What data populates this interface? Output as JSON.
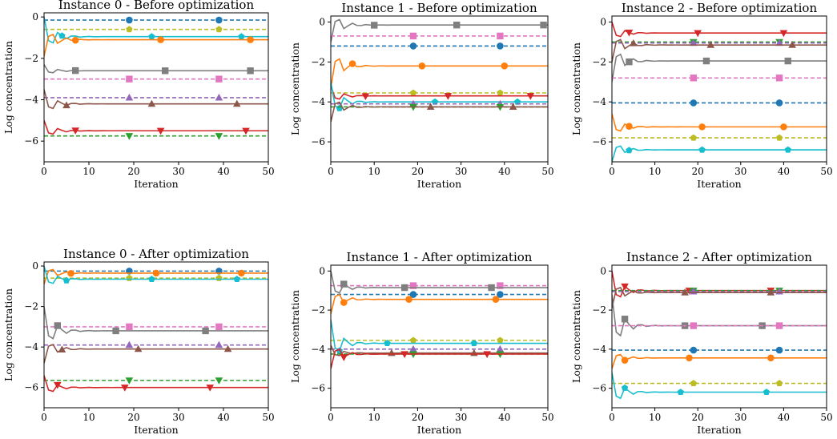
{
  "colors": {
    "blue": "#1f77b4",
    "orange": "#ff7f0e",
    "green": "#2ca02c",
    "red": "#d62728",
    "purple": "#9467bd",
    "brown": "#8c564b",
    "pink": "#e377c2",
    "gray": "#7f7f7f",
    "olive": "#bcbd22",
    "cyan": "#17becf"
  },
  "chart_data": [
    {
      "type": "line",
      "title": "Instance 0 - Before optimization",
      "xlabel": "Iteration",
      "ylabel": "Log concentration",
      "xlim": [
        0,
        50
      ],
      "ylim": [
        -7,
        0.2
      ],
      "xticks": [
        "0",
        "10",
        "20",
        "30",
        "40",
        "50"
      ],
      "xtick_values": [
        0,
        10,
        20,
        30,
        40,
        50
      ],
      "yticks": [
        "0",
        "−2",
        "−4",
        "−6"
      ],
      "ytick_values": [
        0,
        -2,
        -4,
        -6
      ],
      "series": [
        {
          "color": "blue",
          "marker": "circle",
          "dashed": true,
          "start": -0.15,
          "final": -0.15,
          "markers_at": [
            19,
            39
          ]
        },
        {
          "color": "olive",
          "marker": "pentagon",
          "dashed": true,
          "start": -0.6,
          "final": -0.6,
          "markers_at": [
            19,
            39
          ]
        },
        {
          "color": "cyan",
          "marker": "pentagon",
          "dashed": false,
          "start": 0.0,
          "final": -0.95,
          "markers_at": [
            4,
            24,
            44
          ]
        },
        {
          "color": "orange",
          "marker": "circle",
          "dashed": false,
          "start": -1.9,
          "final": -1.1,
          "markers_at": [
            7,
            26,
            46
          ]
        },
        {
          "color": "gray",
          "marker": "square",
          "dashed": false,
          "start": -2.3,
          "final": -2.6,
          "markers_at": [
            7,
            27,
            46
          ]
        },
        {
          "color": "pink",
          "marker": "square",
          "dashed": true,
          "start": -3.0,
          "final": -3.0,
          "markers_at": [
            19,
            39
          ]
        },
        {
          "color": "purple",
          "marker": "triangle-up",
          "dashed": true,
          "start": -3.9,
          "final": -3.9,
          "markers_at": [
            19,
            39
          ]
        },
        {
          "color": "brown",
          "marker": "triangle-up",
          "dashed": false,
          "start": -3.5,
          "final": -4.2,
          "markers_at": [
            5,
            24,
            43
          ]
        },
        {
          "color": "red",
          "marker": "triangle-down",
          "dashed": false,
          "start": -5.0,
          "final": -5.5,
          "markers_at": [
            7,
            26,
            45
          ]
        },
        {
          "color": "green",
          "marker": "triangle-down",
          "dashed": true,
          "start": -5.75,
          "final": -5.75,
          "markers_at": [
            19,
            39
          ]
        }
      ]
    },
    {
      "type": "line",
      "title": "Instance 1 - Before optimization",
      "xlabel": "Iteration",
      "ylabel": "Log concentration",
      "xlim": [
        0,
        50
      ],
      "ylim": [
        -7,
        0.3
      ],
      "xticks": [
        "0",
        "10",
        "20",
        "30",
        "40",
        "50"
      ],
      "xtick_values": [
        0,
        10,
        20,
        30,
        40,
        50
      ],
      "yticks": [
        "0",
        "−2",
        "−4",
        "−6"
      ],
      "ytick_values": [
        0,
        -2,
        -4,
        -6
      ],
      "series": [
        {
          "color": "gray",
          "marker": "square",
          "dashed": false,
          "start": -1.0,
          "final": -0.15,
          "markers_at": [
            10,
            29,
            49
          ]
        },
        {
          "color": "pink",
          "marker": "square",
          "dashed": true,
          "start": -0.7,
          "final": -0.7,
          "markers_at": [
            19,
            39
          ]
        },
        {
          "color": "blue",
          "marker": "circle",
          "dashed": true,
          "start": -1.2,
          "final": -1.2,
          "markers_at": [
            19,
            39
          ]
        },
        {
          "color": "orange",
          "marker": "circle",
          "dashed": false,
          "start": -3.3,
          "final": -2.2,
          "markers_at": [
            5,
            21,
            40
          ]
        },
        {
          "color": "olive",
          "marker": "pentagon",
          "dashed": true,
          "start": -3.55,
          "final": -3.55,
          "markers_at": [
            19,
            39
          ]
        },
        {
          "color": "red",
          "marker": "triangle-down",
          "dashed": false,
          "start": -3.2,
          "final": -3.7,
          "markers_at": [
            8,
            27,
            46
          ]
        },
        {
          "color": "cyan",
          "marker": "pentagon",
          "dashed": false,
          "start": -3.0,
          "final": -4.0,
          "markers_at": [
            2,
            24,
            43
          ]
        },
        {
          "color": "purple",
          "marker": "triangle-up",
          "dashed": true,
          "start": -4.1,
          "final": -4.1,
          "markers_at": [
            19,
            39
          ]
        },
        {
          "color": "green",
          "marker": "triangle-down",
          "dashed": true,
          "start": -4.25,
          "final": -4.25,
          "markers_at": [
            19,
            39
          ]
        },
        {
          "color": "brown",
          "marker": "triangle-up",
          "dashed": false,
          "start": -5.0,
          "final": -4.25,
          "markers_at": [
            23,
            42
          ]
        }
      ]
    },
    {
      "type": "line",
      "title": "Instance 2 - Before optimization",
      "xlabel": "Iteration",
      "ylabel": "Log concentration",
      "xlim": [
        0,
        50
      ],
      "ylim": [
        -7,
        0.3
      ],
      "xticks": [
        "0",
        "10",
        "20",
        "30",
        "40",
        "50"
      ],
      "xtick_values": [
        0,
        10,
        20,
        30,
        40,
        50
      ],
      "yticks": [
        "0",
        "−2",
        "−4",
        "−6"
      ],
      "ytick_values": [
        0,
        -2,
        -4,
        -6
      ],
      "series": [
        {
          "color": "red",
          "marker": "triangle-down",
          "dashed": false,
          "start": 0.0,
          "final": -0.55,
          "markers_at": [
            4,
            20,
            40
          ]
        },
        {
          "color": "green",
          "marker": "triangle-down",
          "dashed": true,
          "start": -1.0,
          "final": -1.0,
          "markers_at": [
            19,
            39
          ]
        },
        {
          "color": "purple",
          "marker": "triangle-up",
          "dashed": true,
          "start": -1.05,
          "final": -1.05,
          "markers_at": [
            19,
            39
          ]
        },
        {
          "color": "brown",
          "marker": "triangle-up",
          "dashed": false,
          "start": -2.0,
          "final": -1.15,
          "markers_at": [
            5,
            23,
            42
          ]
        },
        {
          "color": "gray",
          "marker": "square",
          "dashed": false,
          "start": -3.0,
          "final": -1.95,
          "markers_at": [
            4,
            22,
            41
          ]
        },
        {
          "color": "pink",
          "marker": "square",
          "dashed": true,
          "start": -2.8,
          "final": -2.8,
          "markers_at": [
            19,
            39
          ]
        },
        {
          "color": "blue",
          "marker": "circle",
          "dashed": true,
          "start": -4.05,
          "final": -4.05,
          "markers_at": [
            19,
            39
          ]
        },
        {
          "color": "orange",
          "marker": "circle",
          "dashed": false,
          "start": -4.6,
          "final": -5.25,
          "markers_at": [
            4,
            21,
            40
          ]
        },
        {
          "color": "olive",
          "marker": "pentagon",
          "dashed": true,
          "start": -5.8,
          "final": -5.8,
          "markers_at": [
            19,
            39
          ]
        },
        {
          "color": "cyan",
          "marker": "pentagon",
          "dashed": false,
          "start": -7.0,
          "final": -6.4,
          "markers_at": [
            4,
            21,
            41
          ]
        }
      ]
    },
    {
      "type": "line",
      "title": "Instance 0 - After optimization",
      "xlabel": "Iteration",
      "ylabel": "Log concentration",
      "xlim": [
        0,
        50
      ],
      "ylim": [
        -7,
        0.2
      ],
      "xticks": [
        "0",
        "10",
        "20",
        "30",
        "40",
        "50"
      ],
      "xtick_values": [
        0,
        10,
        20,
        30,
        40,
        50
      ],
      "yticks": [
        "0",
        "−2",
        "−4",
        "−6"
      ],
      "ytick_values": [
        0,
        -2,
        -4,
        -6
      ],
      "series": [
        {
          "color": "blue",
          "marker": "circle",
          "dashed": true,
          "start": -0.25,
          "final": -0.25,
          "markers_at": [
            19,
            39
          ]
        },
        {
          "color": "orange",
          "marker": "circle",
          "dashed": false,
          "start": -0.9,
          "final": -0.35,
          "markers_at": [
            6,
            25,
            44
          ]
        },
        {
          "color": "olive",
          "marker": "pentagon",
          "dashed": true,
          "start": -0.6,
          "final": -0.6,
          "markers_at": [
            19,
            39
          ]
        },
        {
          "color": "cyan",
          "marker": "pentagon",
          "dashed": false,
          "start": 0.0,
          "final": -0.65,
          "markers_at": [
            5,
            24,
            43
          ]
        },
        {
          "color": "pink",
          "marker": "square",
          "dashed": true,
          "start": -3.0,
          "final": -3.0,
          "markers_at": [
            19,
            39
          ]
        },
        {
          "color": "gray",
          "marker": "square",
          "dashed": false,
          "start": -2.0,
          "final": -3.2,
          "markers_at": [
            3,
            16,
            36
          ]
        },
        {
          "color": "purple",
          "marker": "triangle-up",
          "dashed": true,
          "start": -3.9,
          "final": -3.9,
          "markers_at": [
            19,
            39
          ]
        },
        {
          "color": "brown",
          "marker": "triangle-up",
          "dashed": false,
          "start": -4.8,
          "final": -4.1,
          "markers_at": [
            4,
            21,
            41
          ]
        },
        {
          "color": "green",
          "marker": "triangle-down",
          "dashed": true,
          "start": -5.65,
          "final": -5.65,
          "markers_at": [
            19,
            39
          ]
        },
        {
          "color": "red",
          "marker": "triangle-down",
          "dashed": false,
          "start": -5.4,
          "final": -6.0,
          "markers_at": [
            3,
            18,
            37
          ]
        }
      ]
    },
    {
      "type": "line",
      "title": "Instance 1 - After optimization",
      "xlabel": "Iteration",
      "ylabel": "Log concentration",
      "xlim": [
        0,
        50
      ],
      "ylim": [
        -7,
        0.3
      ],
      "xticks": [
        "0",
        "10",
        "20",
        "30",
        "40",
        "50"
      ],
      "xtick_values": [
        0,
        10,
        20,
        30,
        40,
        50
      ],
      "yticks": [
        "0",
        "−2",
        "−4",
        "−6"
      ],
      "ytick_values": [
        0,
        -2,
        -4,
        -6
      ],
      "series": [
        {
          "color": "pink",
          "marker": "square",
          "dashed": true,
          "start": -0.75,
          "final": -0.75,
          "markers_at": [
            19,
            39
          ]
        },
        {
          "color": "gray",
          "marker": "square",
          "dashed": false,
          "start": 0.0,
          "final": -0.85,
          "markers_at": [
            3,
            17,
            37
          ]
        },
        {
          "color": "blue",
          "marker": "circle",
          "dashed": true,
          "start": -1.2,
          "final": -1.2,
          "markers_at": [
            19,
            39
          ]
        },
        {
          "color": "orange",
          "marker": "circle",
          "dashed": false,
          "start": -2.2,
          "final": -1.45,
          "markers_at": [
            3,
            18,
            38
          ]
        },
        {
          "color": "olive",
          "marker": "pentagon",
          "dashed": true,
          "start": -3.55,
          "final": -3.55,
          "markers_at": [
            19,
            39
          ]
        },
        {
          "color": "cyan",
          "marker": "pentagon",
          "dashed": false,
          "start": -2.5,
          "final": -3.7,
          "markers_at": [
            2,
            13,
            33
          ]
        },
        {
          "color": "purple",
          "marker": "triangle-up",
          "dashed": true,
          "start": -4.0,
          "final": -4.0,
          "markers_at": [
            19,
            39
          ]
        },
        {
          "color": "brown",
          "marker": "triangle-up",
          "dashed": false,
          "start": -3.8,
          "final": -4.2,
          "markers_at": [
            14,
            33
          ]
        },
        {
          "color": "green",
          "marker": "triangle-down",
          "dashed": true,
          "start": -4.25,
          "final": -4.25,
          "markers_at": [
            19,
            39
          ]
        },
        {
          "color": "red",
          "marker": "triangle-down",
          "dashed": false,
          "start": -5.0,
          "final": -4.25,
          "markers_at": [
            3,
            17,
            36
          ]
        }
      ]
    },
    {
      "type": "line",
      "title": "Instance 2 - After optimization",
      "xlabel": "Iteration",
      "ylabel": "Log concentration",
      "xlim": [
        0,
        50
      ],
      "ylim": [
        -7,
        0.3
      ],
      "xticks": [
        "0",
        "10",
        "20",
        "30",
        "40",
        "50"
      ],
      "xtick_values": [
        0,
        10,
        20,
        30,
        40,
        50
      ],
      "yticks": [
        "0",
        "−2",
        "−4",
        "−6"
      ],
      "ytick_values": [
        0,
        -2,
        -4,
        -6
      ],
      "series": [
        {
          "color": "red",
          "marker": "triangle-down",
          "dashed": false,
          "start": 0.0,
          "final": -1.0,
          "markers_at": [
            3,
            18,
            37
          ]
        },
        {
          "color": "green",
          "marker": "triangle-down",
          "dashed": true,
          "start": -1.0,
          "final": -1.0,
          "markers_at": [
            19,
            39
          ]
        },
        {
          "color": "purple",
          "marker": "triangle-up",
          "dashed": true,
          "start": -1.05,
          "final": -1.05,
          "markers_at": [
            19,
            39
          ]
        },
        {
          "color": "brown",
          "marker": "triangle-up",
          "dashed": false,
          "start": -1.9,
          "final": -1.1,
          "markers_at": [
            17,
            37
          ]
        },
        {
          "color": "gray",
          "marker": "square",
          "dashed": false,
          "start": -1.2,
          "final": -2.8,
          "markers_at": [
            3,
            17,
            35
          ]
        },
        {
          "color": "pink",
          "marker": "square",
          "dashed": true,
          "start": -2.8,
          "final": -2.8,
          "markers_at": [
            19,
            39
          ]
        },
        {
          "color": "blue",
          "marker": "circle",
          "dashed": true,
          "start": -4.05,
          "final": -4.05,
          "markers_at": [
            19,
            39
          ]
        },
        {
          "color": "orange",
          "marker": "circle",
          "dashed": false,
          "start": -5.0,
          "final": -4.45,
          "markers_at": [
            3,
            18,
            37
          ]
        },
        {
          "color": "olive",
          "marker": "pentagon",
          "dashed": true,
          "start": -5.75,
          "final": -5.75,
          "markers_at": [
            19,
            39
          ]
        },
        {
          "color": "cyan",
          "marker": "pentagon",
          "dashed": false,
          "start": -5.2,
          "final": -6.2,
          "markers_at": [
            3,
            16,
            36
          ]
        }
      ]
    }
  ]
}
